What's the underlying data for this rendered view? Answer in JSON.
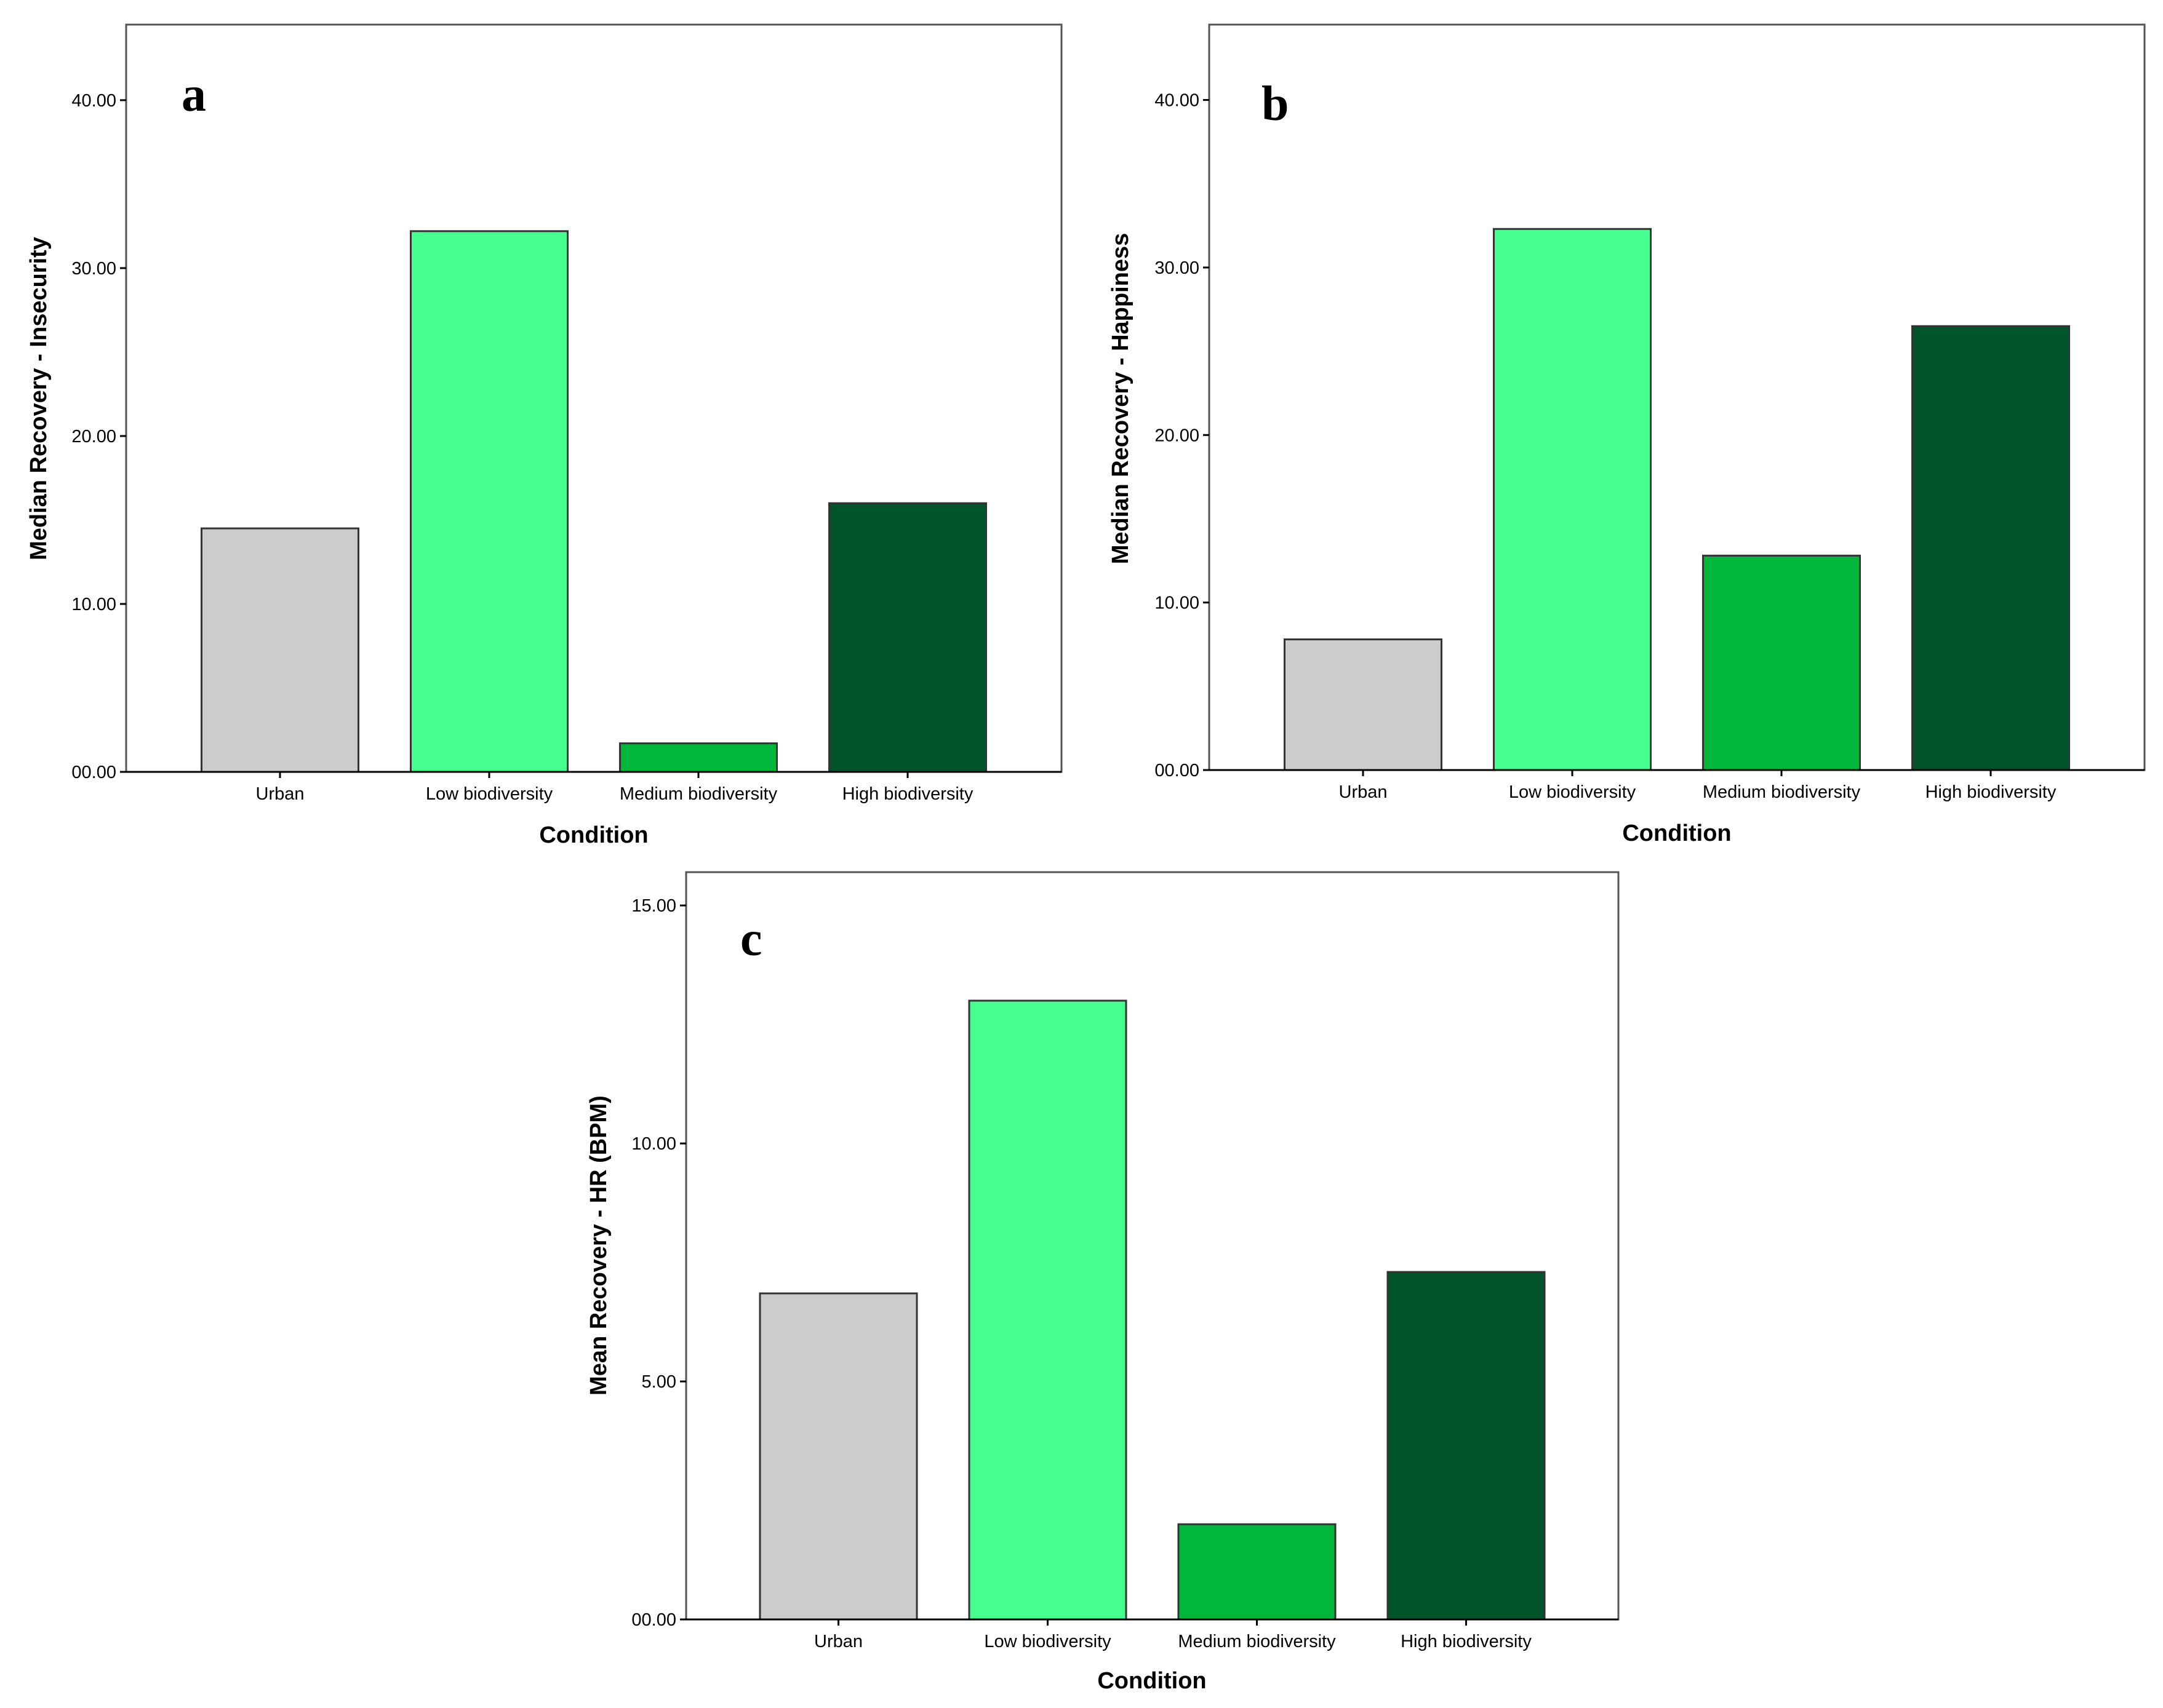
{
  "chart_data": [
    {
      "type": "bar",
      "panel_label": "a",
      "xlabel": "Condition",
      "ylabel": "Median Recovery - Insecurity",
      "categories": [
        "Urban",
        "Low biodiversity",
        "Medium biodiversity",
        "High biodiversity"
      ],
      "values": [
        14.5,
        32.2,
        1.7,
        16.0
      ],
      "colors": [
        "#cccccc",
        "#45ff90",
        "#00b73c",
        "#00542a"
      ],
      "yticks": [
        "00.00",
        "10.00",
        "20.00",
        "30.00",
        "40.00"
      ],
      "ytick_values": [
        0,
        10,
        20,
        30,
        40
      ],
      "ylim": [
        0,
        44.5
      ]
    },
    {
      "type": "bar",
      "panel_label": "b",
      "xlabel": "Condition",
      "ylabel": "Median Recovery - Happiness",
      "categories": [
        "Urban",
        "Low biodiversity",
        "Medium biodiversity",
        "High biodiversity"
      ],
      "values": [
        7.8,
        32.3,
        12.8,
        26.5
      ],
      "colors": [
        "#cccccc",
        "#45ff90",
        "#00b73c",
        "#00542a"
      ],
      "yticks": [
        "00.00",
        "10.00",
        "20.00",
        "30.00",
        "40.00"
      ],
      "ytick_values": [
        0,
        10,
        20,
        30,
        40
      ],
      "ylim": [
        0,
        44.5
      ]
    },
    {
      "type": "bar",
      "panel_label": "c",
      "xlabel": "Condition",
      "ylabel": "Mean Recovery - HR (BPM)",
      "categories": [
        "Urban",
        "Low biodiversity",
        "Medium biodiversity",
        "High biodiversity"
      ],
      "values": [
        6.85,
        13.0,
        2.0,
        7.3
      ],
      "colors": [
        "#cccccc",
        "#45ff90",
        "#00b73c",
        "#00542a"
      ],
      "yticks": [
        "00.00",
        "5.00",
        "10.00",
        "15.00"
      ],
      "ytick_values": [
        0,
        5,
        10,
        15
      ],
      "ylim": [
        0,
        15.7
      ]
    }
  ]
}
